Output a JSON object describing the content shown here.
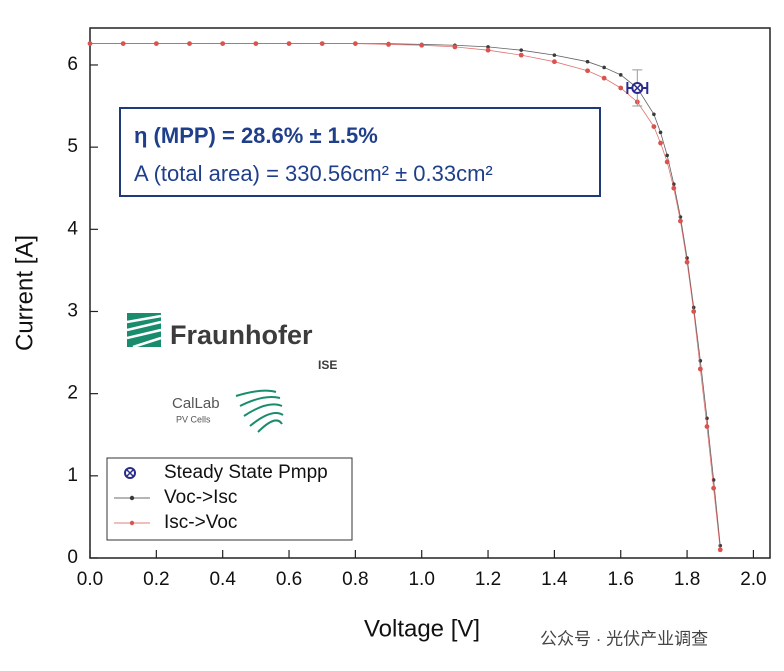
{
  "chart_data": {
    "type": "line",
    "xlabel": "Voltage [V]",
    "ylabel": "Current [A]",
    "xlim": [
      0,
      2.05
    ],
    "ylim": [
      0,
      6.45
    ],
    "xticks": [
      {
        "value": 0,
        "label": "0.0"
      },
      0.2,
      0.4,
      0.6,
      0.8,
      {
        "value": 1,
        "label": "1.0"
      },
      1.2,
      1.4,
      1.6,
      1.8,
      {
        "value": 2,
        "label": "2.0"
      }
    ],
    "yticks": [
      0,
      1,
      2,
      3,
      4,
      5,
      6
    ],
    "x": [
      0,
      0.1,
      0.2,
      0.3,
      0.4,
      0.5,
      0.6,
      0.7,
      0.8,
      0.9,
      1.0,
      1.1,
      1.2,
      1.3,
      1.4,
      1.5,
      1.55,
      1.6,
      1.65,
      1.7,
      1.72,
      1.74,
      1.76,
      1.78,
      1.8,
      1.82,
      1.84,
      1.86,
      1.88,
      1.9
    ],
    "series": [
      {
        "name": "Voc->Isc",
        "color": "#3a3a3a",
        "values": [
          6.26,
          6.26,
          6.26,
          6.26,
          6.26,
          6.26,
          6.26,
          6.26,
          6.26,
          6.26,
          6.25,
          6.24,
          6.22,
          6.18,
          6.12,
          6.04,
          5.97,
          5.88,
          5.72,
          5.4,
          5.18,
          4.9,
          4.55,
          4.15,
          3.65,
          3.05,
          2.4,
          1.7,
          0.95,
          0.15
        ]
      },
      {
        "name": "Isc->Voc",
        "color": "#d9534f",
        "values": [
          6.26,
          6.26,
          6.26,
          6.26,
          6.26,
          6.26,
          6.26,
          6.26,
          6.26,
          6.25,
          6.24,
          6.22,
          6.18,
          6.12,
          6.04,
          5.93,
          5.84,
          5.72,
          5.55,
          5.25,
          5.05,
          4.82,
          4.5,
          4.1,
          3.6,
          3.0,
          2.3,
          1.6,
          0.85,
          0.1
        ]
      }
    ],
    "points": [
      {
        "name": "Steady State Pmpp",
        "color": "#2b2b8c",
        "x": 1.65,
        "y": 5.72,
        "xerr": 0.03,
        "yerr": 0.22
      }
    ],
    "annotations": [
      "η (MPP) = 28.6% ± 1.5%",
      "A (total area) = 330.56cm² ± 0.33cm²"
    ]
  },
  "logos": {
    "fraunhofer": "Fraunhofer",
    "ise": "ISE",
    "callab": "CalLab",
    "callab_sub": "PV Cells"
  },
  "watermark": "公众号 · 光伏产业调查"
}
